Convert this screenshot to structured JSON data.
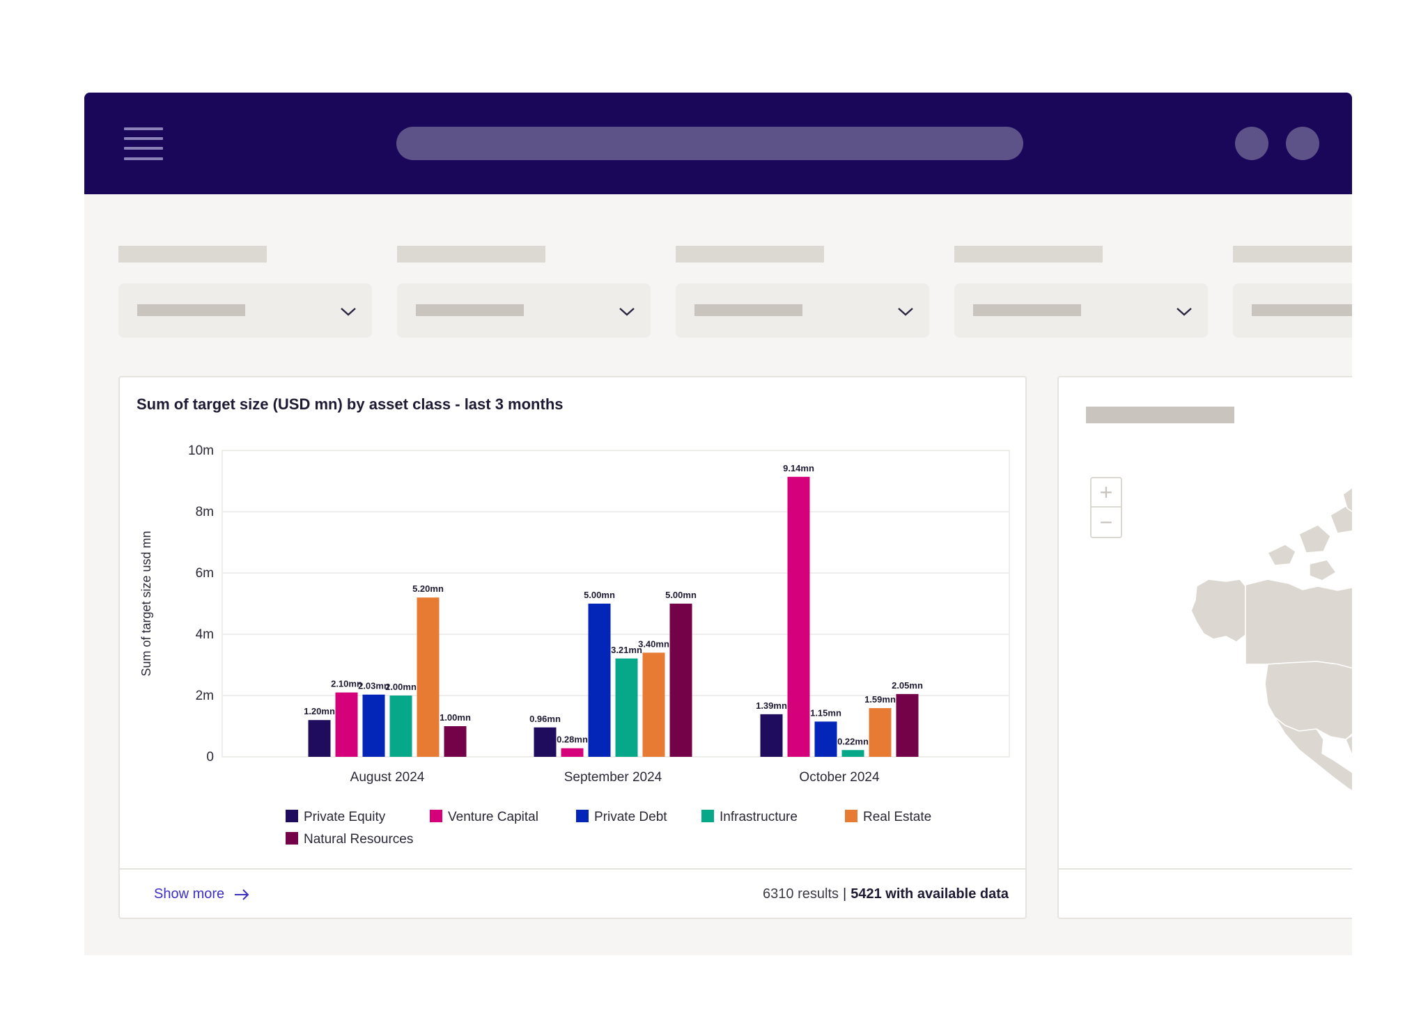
{
  "chart_title": "Sum of target size (USD mn) by asset class - last 3 months",
  "footer": {
    "show_more": "Show more",
    "results": "6310 results",
    "separator": "|",
    "available": "5421 with available data"
  },
  "zoom": {
    "plus": "+",
    "minus": "−"
  },
  "icons": {
    "menu": "hamburger-menu-icon",
    "dropdown": "chevron-down-icon",
    "arrow": "arrow-right-icon"
  },
  "colors": {
    "topbar": "#1a075a",
    "link": "#3a2fc4"
  },
  "chart_data": {
    "type": "bar",
    "ylabel": "Sum of target size usd mn",
    "ylim": [
      0,
      10
    ],
    "yticks": [
      "0",
      "2m",
      "4m",
      "6m",
      "8m",
      "10m"
    ],
    "grid": true,
    "legend_placement": "bottom",
    "categories": [
      "August 2024",
      "September 2024",
      "October 2024"
    ],
    "series": [
      {
        "name": "Private Equity",
        "color": "#1f0c5c",
        "values": [
          1.2,
          0.96,
          1.39
        ],
        "labels": [
          "1.20mn",
          "0.96mn",
          "1.39mn"
        ]
      },
      {
        "name": "Venture Capital",
        "color": "#d4017a",
        "values": [
          2.1,
          0.28,
          9.14
        ],
        "labels": [
          "2.10mn",
          "0.28mn",
          "9.14mn"
        ]
      },
      {
        "name": "Private Debt",
        "color": "#0326b8",
        "values": [
          2.03,
          5.0,
          1.15
        ],
        "labels": [
          "2.03mn",
          "5.00mn",
          "1.15mn"
        ]
      },
      {
        "name": "Infrastructure",
        "color": "#07a88a",
        "values": [
          2.0,
          3.21,
          0.22
        ],
        "labels": [
          "2.00mn",
          "3.21mn",
          "0.22mn"
        ]
      },
      {
        "name": "Real Estate",
        "color": "#e87b34",
        "values": [
          5.2,
          3.4,
          1.59
        ],
        "labels": [
          "5.20mn",
          "3.40mn",
          "1.59mn"
        ]
      },
      {
        "name": "Natural Resources",
        "color": "#740248",
        "values": [
          1.0,
          5.0,
          2.05
        ],
        "labels": [
          "1.00mn",
          "5.00mn",
          "2.05mn"
        ]
      }
    ]
  }
}
